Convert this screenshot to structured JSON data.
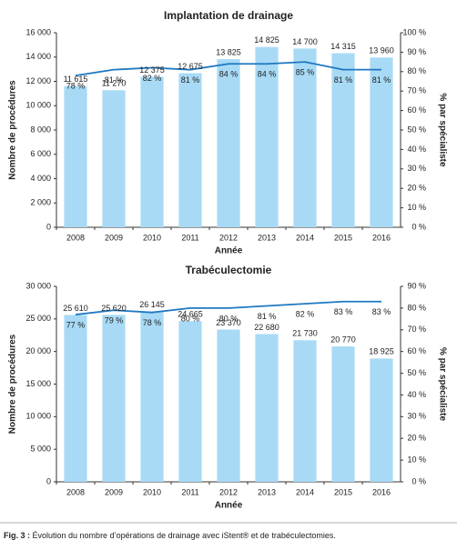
{
  "chart_data": [
    {
      "type": "bar",
      "title": "Implantation de drainage",
      "x_label": "Année",
      "y_label": "Nombre de procédures",
      "y2_label": "% par spécialiste",
      "categories": [
        "2008",
        "2009",
        "2010",
        "2011",
        "2012",
        "2013",
        "2014",
        "2015",
        "2016"
      ],
      "series": [
        {
          "type": "bar",
          "color": "#a8daf5",
          "values": [
            11615,
            11270,
            12375,
            12675,
            13825,
            14825,
            14700,
            14315,
            13960
          ],
          "value_labels": [
            "11 615",
            "11 270",
            "12 375",
            "12 675",
            "13 825",
            "14 825",
            "14 700",
            "14 315",
            "13 960"
          ]
        },
        {
          "type": "line",
          "axis": "y2",
          "color": "#1f78c1",
          "values": [
            78,
            81,
            82,
            81,
            84,
            84,
            85,
            81,
            81
          ],
          "value_labels": [
            "78 %",
            "81 %",
            "82 %",
            "81 %",
            "84 %",
            "84 %",
            "85 %",
            "81 %",
            "81 %"
          ]
        }
      ],
      "ylim": [
        0,
        16000
      ],
      "yticks": [
        0,
        {
          "value": 2000,
          "label": "2 000"
        },
        {
          "value": 4000,
          "label": "4 000"
        },
        {
          "value": 6000,
          "label": "6 000"
        },
        {
          "value": 8000,
          "label": "8 000"
        },
        {
          "value": 10000,
          "label": "10 000"
        },
        {
          "value": 12000,
          "label": "12 000"
        },
        {
          "value": 14000,
          "label": "14 000"
        },
        {
          "value": 16000,
          "label": "16 000"
        }
      ],
      "y2lim": [
        0,
        100
      ],
      "y2ticks": [
        {
          "value": 0,
          "label": "0 %"
        },
        {
          "value": 10,
          "label": "10 %"
        },
        {
          "value": 20,
          "label": "20 %"
        },
        {
          "value": 30,
          "label": "30 %"
        },
        {
          "value": 40,
          "label": "40 %"
        },
        {
          "value": 50,
          "label": "50 %"
        },
        {
          "value": 60,
          "label": "60 %"
        },
        {
          "value": 70,
          "label": "70 %"
        },
        {
          "value": 80,
          "label": "80 %"
        },
        {
          "value": 90,
          "label": "90 %"
        },
        {
          "value": 100,
          "label": "100 %"
        }
      ]
    },
    {
      "type": "bar",
      "title": "Trabéculectomie",
      "x_label": "Année",
      "y_label": "Nombre de procédures",
      "y2_label": "% par spécialiste",
      "categories": [
        "2008",
        "2009",
        "2010",
        "2011",
        "2012",
        "2013",
        "2014",
        "2015",
        "2016"
      ],
      "series": [
        {
          "type": "bar",
          "color": "#a8daf5",
          "values": [
            25610,
            25620,
            26145,
            24665,
            23370,
            22680,
            21730,
            20770,
            18925
          ],
          "value_labels": [
            "25 610",
            "25 620",
            "26 145",
            "24 665",
            "23 370",
            "22 680",
            "21 730",
            "20 770",
            "18 925"
          ]
        },
        {
          "type": "line",
          "axis": "y2",
          "color": "#1f78c1",
          "values": [
            77,
            79,
            78,
            80,
            80,
            81,
            82,
            83,
            83
          ],
          "value_labels": [
            "77 %",
            "79 %",
            "78 %",
            "80 %",
            "80 %",
            "81 %",
            "82 %",
            "83 %",
            "83 %"
          ]
        }
      ],
      "ylim": [
        0,
        30000
      ],
      "yticks": [
        0,
        {
          "value": 5000,
          "label": "5 000"
        },
        {
          "value": 10000,
          "label": "10 000"
        },
        {
          "value": 15000,
          "label": "15 000"
        },
        {
          "value": 20000,
          "label": "20 000"
        },
        {
          "value": 25000,
          "label": "25 000"
        },
        {
          "value": 30000,
          "label": "30 000"
        }
      ],
      "y2lim": [
        0,
        90
      ],
      "y2ticks": [
        {
          "value": 0,
          "label": "0 %"
        },
        {
          "value": 10,
          "label": "10 %"
        },
        {
          "value": 20,
          "label": "20 %"
        },
        {
          "value": 30,
          "label": "30 %"
        },
        {
          "value": 40,
          "label": "40 %"
        },
        {
          "value": 50,
          "label": "50 %"
        },
        {
          "value": 60,
          "label": "60 %"
        },
        {
          "value": 70,
          "label": "70 %"
        },
        {
          "value": 80,
          "label": "80 %"
        },
        {
          "value": 90,
          "label": "90 %"
        }
      ]
    }
  ],
  "caption": {
    "label": "Fig. 3 :",
    "text": "Évolution du nombre d’opérations de drainage avec iStent® et de trabéculectomies."
  }
}
